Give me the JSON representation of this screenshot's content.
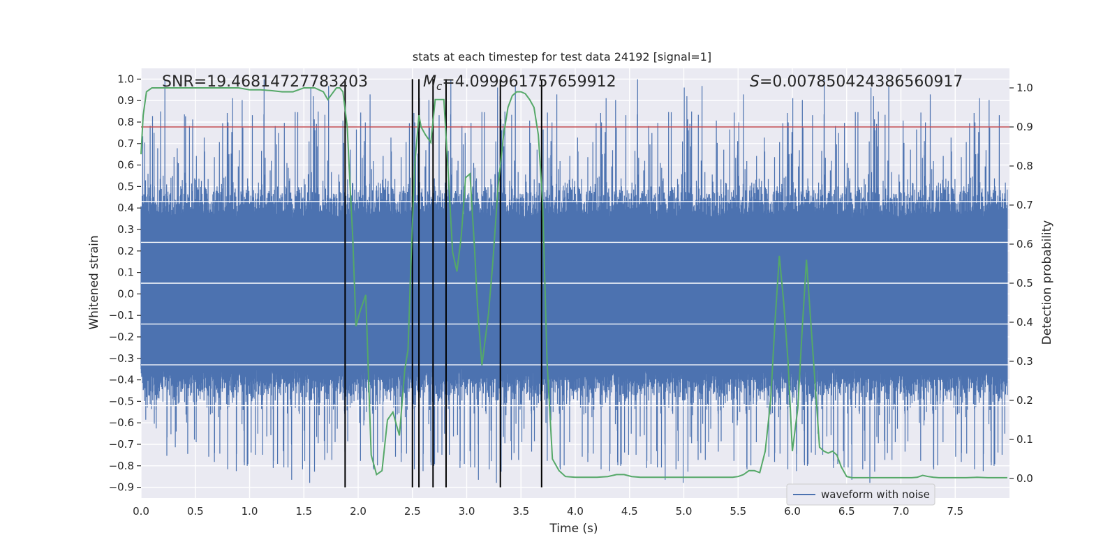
{
  "chart_data": {
    "type": "line",
    "title": "stats at each timestep for test data 24192 [signal=1]",
    "xlabel": "Time (s)",
    "ylabel_left": "Whitened strain",
    "ylabel_right": "Detection probability",
    "xlim": [
      0.0,
      8.0
    ],
    "ylim_left": [
      -0.95,
      1.05
    ],
    "ylim_right": [
      -0.05,
      1.05
    ],
    "x_ticks": [
      "0.0",
      "0.5",
      "1.0",
      "1.5",
      "2.0",
      "2.5",
      "3.0",
      "3.5",
      "4.0",
      "4.5",
      "5.0",
      "5.5",
      "6.0",
      "6.5",
      "7.0",
      "7.5"
    ],
    "y_left_ticks": [
      "1.0",
      "0.9",
      "0.8",
      "0.7",
      "0.6",
      "0.5",
      "0.4",
      "0.3",
      "0.2",
      "0.1",
      "0.0",
      "−0.1",
      "−0.2",
      "−0.3",
      "−0.4",
      "−0.5",
      "−0.6",
      "−0.7",
      "−0.8",
      "−0.9"
    ],
    "y_right_ticks": [
      "1.0",
      "0.9",
      "0.8",
      "0.7",
      "0.6",
      "0.5",
      "0.4",
      "0.3",
      "0.2",
      "0.1",
      "0.0"
    ],
    "grid": true,
    "legend": {
      "placement": "lower-right",
      "entries": [
        "waveform with noise"
      ]
    },
    "annotations": {
      "snr": "SNR=19.46814727783203",
      "mc_prefix": "M",
      "mc_sub": "c",
      "mc_value": "=4.099961757659912",
      "s_prefix": "S",
      "s_value": "=0.007850424386560917"
    },
    "threshold": {
      "axis": "right",
      "value": 0.9,
      "color": "#c44e52"
    },
    "vlines_x": [
      1.88,
      2.5,
      2.56,
      2.69,
      2.81,
      3.31,
      3.69
    ],
    "vline_range_left": [
      -0.9,
      1.0
    ],
    "waveform": {
      "name": "waveform with noise",
      "color": "#4c72b0",
      "sample_step": 0.008,
      "envelope_bands_upper": [
        0.36,
        0.36,
        0.36,
        0.36,
        0.36
      ],
      "note_seed": 24192
    },
    "probability": {
      "color": "#55a868",
      "x": [
        0.0,
        0.02,
        0.05,
        0.1,
        0.15,
        0.2,
        0.3,
        0.4,
        0.5,
        0.6,
        0.7,
        0.8,
        0.9,
        1.0,
        1.1,
        1.2,
        1.3,
        1.4,
        1.5,
        1.6,
        1.68,
        1.72,
        1.8,
        1.83,
        1.86,
        1.9,
        1.92,
        1.95,
        1.98,
        2.02,
        2.07,
        2.12,
        2.17,
        2.22,
        2.27,
        2.32,
        2.38,
        2.43,
        2.46,
        2.48,
        2.52,
        2.56,
        2.58,
        2.62,
        2.67,
        2.71,
        2.75,
        2.79,
        2.83,
        2.87,
        2.91,
        2.95,
        2.99,
        3.03,
        3.07,
        3.1,
        3.14,
        3.2,
        3.24,
        3.29,
        3.34,
        3.38,
        3.42,
        3.46,
        3.5,
        3.54,
        3.58,
        3.62,
        3.66,
        3.7,
        3.74,
        3.79,
        3.85,
        3.91,
        4.0,
        4.1,
        4.2,
        4.3,
        4.38,
        4.45,
        4.52,
        4.6,
        4.7,
        4.8,
        4.9,
        5.0,
        5.1,
        5.2,
        5.3,
        5.4,
        5.45,
        5.5,
        5.55,
        5.6,
        5.65,
        5.7,
        5.75,
        5.8,
        5.84,
        5.88,
        5.92,
        5.96,
        6.0,
        6.05,
        6.09,
        6.13,
        6.17,
        6.21,
        6.25,
        6.29,
        6.33,
        6.37,
        6.41,
        6.45,
        6.5,
        6.55,
        6.6,
        6.7,
        6.8,
        6.9,
        7.0,
        7.1,
        7.15,
        7.2,
        7.25,
        7.3,
        7.35,
        7.4,
        7.5,
        7.6,
        7.7,
        7.8,
        7.9,
        7.98
      ],
      "y": [
        0.83,
        0.93,
        0.99,
        1.0,
        1.0,
        1.0,
        1.0,
        1.0,
        1.0,
        1.0,
        1.0,
        1.0,
        1.0,
        0.995,
        0.995,
        0.993,
        0.99,
        0.99,
        1.0,
        1.0,
        0.99,
        0.97,
        1.0,
        1.0,
        0.99,
        0.9,
        0.78,
        0.62,
        0.39,
        0.43,
        0.47,
        0.06,
        0.01,
        0.02,
        0.15,
        0.17,
        0.11,
        0.28,
        0.33,
        0.5,
        0.8,
        0.93,
        0.9,
        0.88,
        0.86,
        0.97,
        0.97,
        0.97,
        0.78,
        0.58,
        0.53,
        0.62,
        0.77,
        0.78,
        0.6,
        0.44,
        0.29,
        0.42,
        0.55,
        0.75,
        0.88,
        0.95,
        0.98,
        0.99,
        0.99,
        0.985,
        0.97,
        0.95,
        0.88,
        0.7,
        0.3,
        0.05,
        0.02,
        0.005,
        0.003,
        0.003,
        0.003,
        0.005,
        0.01,
        0.01,
        0.005,
        0.003,
        0.003,
        0.003,
        0.003,
        0.003,
        0.003,
        0.003,
        0.003,
        0.003,
        0.003,
        0.005,
        0.01,
        0.02,
        0.02,
        0.015,
        0.07,
        0.2,
        0.4,
        0.57,
        0.45,
        0.3,
        0.07,
        0.18,
        0.38,
        0.56,
        0.4,
        0.24,
        0.08,
        0.07,
        0.065,
        0.07,
        0.06,
        0.03,
        0.005,
        0.002,
        0.002,
        0.002,
        0.002,
        0.002,
        0.002,
        0.002,
        0.003,
        0.008,
        0.005,
        0.003,
        0.002,
        0.002,
        0.002,
        0.002,
        0.003,
        0.002,
        0.002,
        0.002
      ]
    }
  }
}
